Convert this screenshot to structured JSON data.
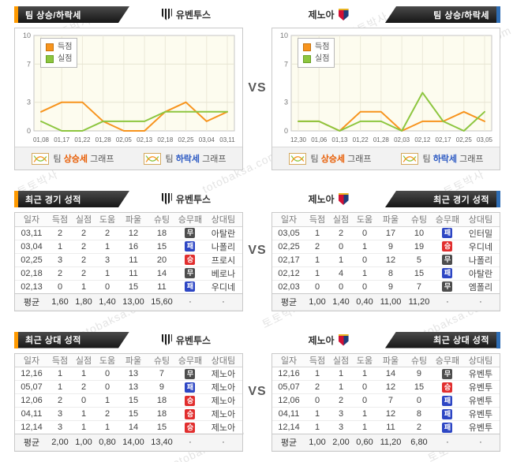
{
  "watermark": {
    "korean": "토토박사",
    "domain": "totobaksa.com"
  },
  "vs_label": "VS",
  "colors": {
    "accent_orange": "#ff9a00",
    "accent_blue": "#2e6db4",
    "header_dark": "#2b2b2b",
    "win_red": "#e12e2e",
    "draw_gray": "#4d4d4d",
    "loss_blue": "#2d46c4",
    "line_scored": "#f7941e",
    "line_conceded": "#8dc63f",
    "rise_text": "#e85d04",
    "fall_text": "#2b59c3",
    "plot_bg": "#fdfcef"
  },
  "teams": {
    "left": {
      "name": "유벤투스"
    },
    "right": {
      "name": "제노아"
    }
  },
  "trend_section": {
    "title": "팀 상승/하락세",
    "graph_legend": {
      "rise": {
        "prefix": "팀 ",
        "word": "상승세",
        "suffix": " 그래프"
      },
      "fall": {
        "prefix": "팀 ",
        "word": "하락세",
        "suffix": " 그래프"
      }
    }
  },
  "chart_data": [
    {
      "type": "line",
      "team": "유벤투스",
      "x": [
        "01,08",
        "01,17",
        "01,22",
        "01,28",
        "02,05",
        "02,13",
        "02,18",
        "02,25",
        "03,04",
        "03,11"
      ],
      "series": [
        {
          "name": "득점",
          "color": "#f7941e",
          "values": [
            2,
            3,
            3,
            1,
            0,
            0,
            2,
            3,
            1,
            2
          ]
        },
        {
          "name": "실점",
          "color": "#8dc63f",
          "values": [
            1,
            0,
            0,
            1,
            1,
            1,
            2,
            2,
            2,
            2
          ]
        }
      ],
      "ylim": [
        0,
        10
      ],
      "yticks": [
        0,
        3,
        7,
        10
      ],
      "legend_position": "top-left",
      "grid": true
    },
    {
      "type": "line",
      "team": "제노아",
      "x": [
        "12,30",
        "01,06",
        "01,13",
        "01,22",
        "01,28",
        "02,03",
        "02,12",
        "02,17",
        "02,25",
        "03,05"
      ],
      "series": [
        {
          "name": "득점",
          "color": "#f7941e",
          "values": [
            1,
            1,
            0,
            2,
            2,
            0,
            1,
            1,
            2,
            1
          ]
        },
        {
          "name": "실점",
          "color": "#8dc63f",
          "values": [
            1,
            1,
            0,
            1,
            1,
            0,
            4,
            1,
            0,
            2
          ]
        }
      ],
      "ylim": [
        0,
        10
      ],
      "yticks": [
        0,
        3,
        7,
        10
      ],
      "legend_position": "top-left",
      "grid": true
    }
  ],
  "table_columns": [
    "일자",
    "득점",
    "실점",
    "도움",
    "파울",
    "슈팅",
    "승무패",
    "상대팀"
  ],
  "recent_section": {
    "title": "최근 경기 성적",
    "left": {
      "team": "유벤투스",
      "rows": [
        {
          "date": "03,11",
          "stats": [
            "2",
            "2",
            "2",
            "12",
            "18"
          ],
          "result": "무",
          "opponent": "아탈란"
        },
        {
          "date": "03,04",
          "stats": [
            "1",
            "2",
            "1",
            "16",
            "15"
          ],
          "result": "패",
          "opponent": "나폴리"
        },
        {
          "date": "02,25",
          "stats": [
            "3",
            "2",
            "3",
            "11",
            "20"
          ],
          "result": "승",
          "opponent": "프로시"
        },
        {
          "date": "02,18",
          "stats": [
            "2",
            "2",
            "1",
            "11",
            "14"
          ],
          "result": "무",
          "opponent": "베로나"
        },
        {
          "date": "02,13",
          "stats": [
            "0",
            "1",
            "0",
            "15",
            "11"
          ],
          "result": "패",
          "opponent": "우디네"
        }
      ],
      "avg_label": "평균",
      "avg": [
        "1,60",
        "1,80",
        "1,40",
        "13,00",
        "15,60",
        "·",
        "·"
      ]
    },
    "right": {
      "team": "제노아",
      "rows": [
        {
          "date": "03,05",
          "stats": [
            "1",
            "2",
            "0",
            "17",
            "10"
          ],
          "result": "패",
          "opponent": "인터밀"
        },
        {
          "date": "02,25",
          "stats": [
            "2",
            "0",
            "1",
            "9",
            "19"
          ],
          "result": "승",
          "opponent": "우디네"
        },
        {
          "date": "02,17",
          "stats": [
            "1",
            "1",
            "0",
            "12",
            "5"
          ],
          "result": "무",
          "opponent": "나폴리"
        },
        {
          "date": "02,12",
          "stats": [
            "1",
            "4",
            "1",
            "8",
            "15"
          ],
          "result": "패",
          "opponent": "아탈란"
        },
        {
          "date": "02,03",
          "stats": [
            "0",
            "0",
            "0",
            "9",
            "7"
          ],
          "result": "무",
          "opponent": "엠폴리"
        }
      ],
      "avg_label": "평균",
      "avg": [
        "1,00",
        "1,40",
        "0,40",
        "11,00",
        "11,20",
        "·",
        "·"
      ]
    }
  },
  "h2h_section": {
    "title": "최근 상대 성적",
    "left": {
      "team": "유벤투스",
      "rows": [
        {
          "date": "12,16",
          "stats": [
            "1",
            "1",
            "0",
            "13",
            "7"
          ],
          "result": "무",
          "opponent": "제노아"
        },
        {
          "date": "05,07",
          "stats": [
            "1",
            "2",
            "0",
            "13",
            "9"
          ],
          "result": "패",
          "opponent": "제노아"
        },
        {
          "date": "12,06",
          "stats": [
            "2",
            "0",
            "1",
            "15",
            "18"
          ],
          "result": "승",
          "opponent": "제노아"
        },
        {
          "date": "04,11",
          "stats": [
            "3",
            "1",
            "2",
            "15",
            "18"
          ],
          "result": "승",
          "opponent": "제노아"
        },
        {
          "date": "12,14",
          "stats": [
            "3",
            "1",
            "1",
            "14",
            "15"
          ],
          "result": "승",
          "opponent": "제노아"
        }
      ],
      "avg_label": "평균",
      "avg": [
        "2,00",
        "1,00",
        "0,80",
        "14,00",
        "13,40",
        "·",
        "·"
      ]
    },
    "right": {
      "team": "제노아",
      "rows": [
        {
          "date": "12,16",
          "stats": [
            "1",
            "1",
            "1",
            "14",
            "9"
          ],
          "result": "무",
          "opponent": "유벤투"
        },
        {
          "date": "05,07",
          "stats": [
            "2",
            "1",
            "0",
            "12",
            "15"
          ],
          "result": "승",
          "opponent": "유벤투"
        },
        {
          "date": "12,06",
          "stats": [
            "0",
            "2",
            "0",
            "7",
            "0"
          ],
          "result": "패",
          "opponent": "유벤투"
        },
        {
          "date": "04,11",
          "stats": [
            "1",
            "3",
            "1",
            "12",
            "8"
          ],
          "result": "패",
          "opponent": "유벤투"
        },
        {
          "date": "12,14",
          "stats": [
            "1",
            "3",
            "1",
            "11",
            "2"
          ],
          "result": "패",
          "opponent": "유벤투"
        }
      ],
      "avg_label": "평균",
      "avg": [
        "1,00",
        "2,00",
        "0,60",
        "11,20",
        "6,80",
        "·",
        "·"
      ]
    }
  }
}
